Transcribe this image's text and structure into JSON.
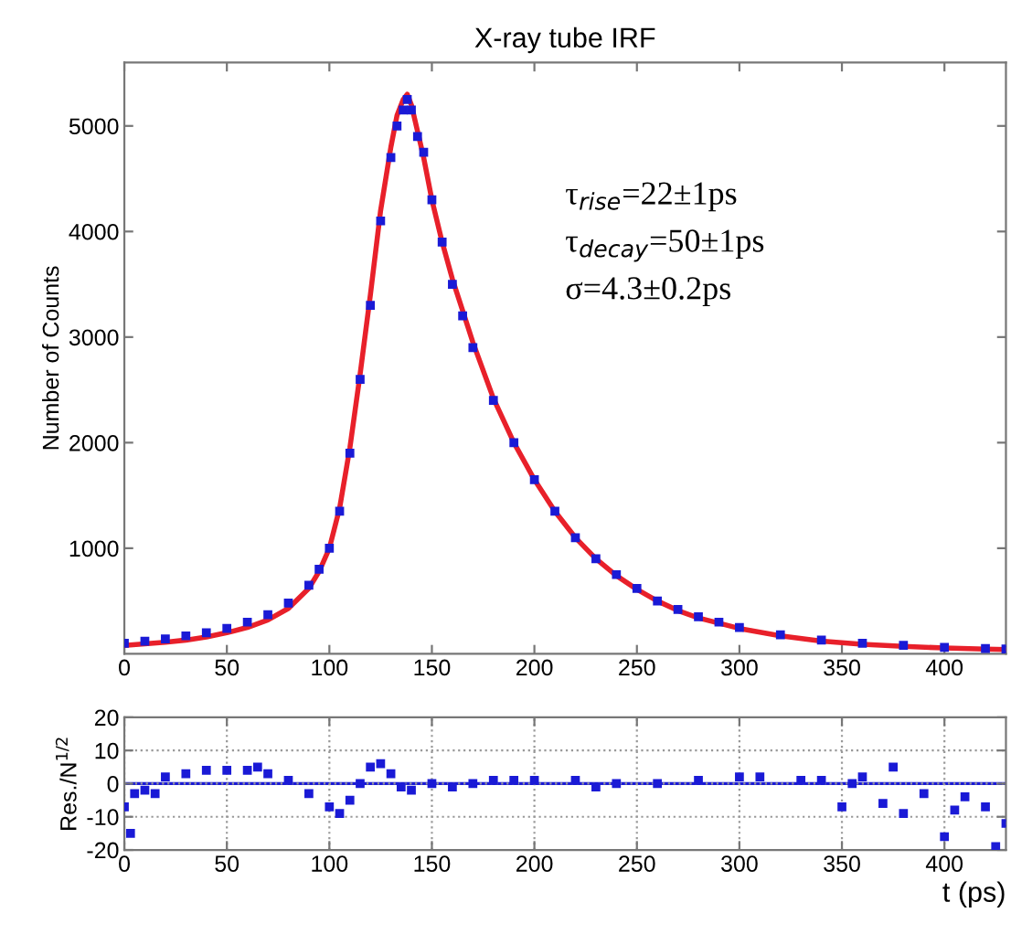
{
  "chart_data": [
    {
      "type": "scatter",
      "title": "X-ray tube IRF",
      "ylabel": "Number of Counts",
      "xlim": [
        0,
        430
      ],
      "xticks": [
        0,
        50,
        100,
        150,
        200,
        250,
        300,
        350,
        400
      ],
      "ylim": [
        0,
        5600
      ],
      "yticks": [
        1000,
        2000,
        3000,
        4000,
        5000
      ],
      "grid": false,
      "annotations": [
        "τ$_{rise}$=22±1ps",
        "τ$_{decay}$=50±1ps",
        "σ=4.3±0.2ps"
      ],
      "series": [
        {
          "marker": "square",
          "color": "#1a1ad6",
          "x": [
            0,
            10,
            20,
            30,
            40,
            50,
            60,
            70,
            80,
            90,
            95,
            100,
            105,
            110,
            115,
            120,
            125,
            130,
            133,
            136,
            138,
            140,
            143,
            146,
            150,
            155,
            160,
            165,
            170,
            180,
            190,
            200,
            210,
            220,
            230,
            240,
            250,
            260,
            270,
            280,
            290,
            300,
            320,
            340,
            360,
            380,
            400,
            420,
            430
          ],
          "values": [
            100,
            120,
            140,
            170,
            200,
            240,
            300,
            370,
            480,
            650,
            800,
            1000,
            1350,
            1900,
            2600,
            3300,
            4100,
            4700,
            5000,
            5150,
            5250,
            5150,
            4900,
            4750,
            4300,
            3900,
            3500,
            3200,
            2900,
            2400,
            2000,
            1650,
            1350,
            1100,
            900,
            750,
            620,
            500,
            420,
            350,
            300,
            250,
            180,
            130,
            100,
            80,
            60,
            50,
            45
          ]
        },
        {
          "type": "line",
          "color": "#e8202a",
          "x": [
            0,
            10,
            20,
            30,
            40,
            50,
            60,
            70,
            80,
            90,
            95,
            100,
            105,
            110,
            115,
            120,
            125,
            130,
            133,
            136,
            138,
            140,
            143,
            146,
            150,
            155,
            160,
            165,
            170,
            180,
            190,
            200,
            210,
            220,
            230,
            240,
            250,
            260,
            270,
            280,
            290,
            300,
            320,
            340,
            360,
            380,
            400,
            420,
            430
          ],
          "values": [
            80,
            95,
            110,
            130,
            160,
            200,
            250,
            320,
            430,
            620,
            780,
            1000,
            1380,
            1950,
            2650,
            3400,
            4200,
            4800,
            5100,
            5250,
            5300,
            5200,
            4950,
            4700,
            4300,
            3900,
            3550,
            3250,
            2950,
            2420,
            2000,
            1650,
            1350,
            1100,
            900,
            740,
            610,
            500,
            410,
            340,
            290,
            240,
            170,
            120,
            90,
            70,
            55,
            45,
            40
          ]
        }
      ]
    },
    {
      "type": "scatter",
      "xlabel": "t (ps)",
      "ylabel": "Res./N$^{1/2}$",
      "xlim": [
        0,
        430
      ],
      "xticks": [
        0,
        50,
        100,
        150,
        200,
        250,
        300,
        350,
        400
      ],
      "ylim": [
        -20,
        20
      ],
      "yticks": [
        -20,
        -10,
        0,
        10,
        20
      ],
      "grid": true,
      "ref_lines": [
        {
          "axis": "y",
          "value": 0,
          "color": "#1a1ad6"
        }
      ],
      "series": [
        {
          "marker": "square",
          "color": "#1a1ad6",
          "x": [
            0,
            3,
            5,
            10,
            15,
            20,
            30,
            40,
            50,
            60,
            65,
            70,
            80,
            90,
            100,
            105,
            110,
            115,
            120,
            125,
            130,
            135,
            140,
            150,
            160,
            170,
            180,
            190,
            200,
            220,
            230,
            240,
            260,
            280,
            300,
            310,
            330,
            340,
            350,
            355,
            360,
            370,
            375,
            380,
            390,
            400,
            405,
            410,
            420,
            425,
            430
          ],
          "values": [
            -7,
            -15,
            -3,
            -2,
            -3,
            2,
            3,
            4,
            4,
            4,
            5,
            3,
            1,
            -3,
            -7,
            -9,
            -5,
            0,
            5,
            6,
            3,
            -1,
            -2,
            0,
            -1,
            0,
            1,
            1,
            1,
            1,
            -1,
            0,
            0,
            1,
            2,
            2,
            1,
            1,
            -7,
            0,
            2,
            -6,
            5,
            -9,
            -3,
            -16,
            -8,
            -4,
            -7,
            -19,
            -12
          ]
        }
      ]
    }
  ]
}
